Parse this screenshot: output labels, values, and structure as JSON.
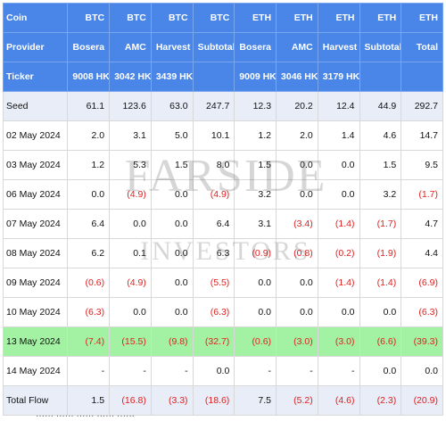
{
  "header_rows": [
    [
      "Coin",
      "BTC",
      "BTC",
      "BTC",
      "BTC",
      "ETH",
      "ETH",
      "ETH",
      "ETH",
      "ETH"
    ],
    [
      "Provider",
      "Bosera",
      "AMC",
      "Harvest",
      "Subtotal",
      "Bosera",
      "AMC",
      "Harvest",
      "Subtotal",
      "Total"
    ],
    [
      "Ticker",
      "9008 HK",
      "3042 HK",
      "3439 HK",
      "",
      "9009 HK",
      "3046 HK",
      "3179 HK",
      "",
      ""
    ]
  ],
  "rows": [
    {
      "label": "Seed",
      "style": "seed",
      "cells": [
        "61.1",
        "123.6",
        "63.0",
        "247.7",
        "12.3",
        "20.2",
        "12.4",
        "44.9",
        "292.7"
      ]
    },
    {
      "label": "02 May 2024",
      "style": "",
      "cells": [
        "2.0",
        "3.1",
        "5.0",
        "10.1",
        "1.2",
        "2.0",
        "1.4",
        "4.6",
        "14.7"
      ]
    },
    {
      "label": "03 May 2024",
      "style": "",
      "cells": [
        "1.2",
        "5.3",
        "1.5",
        "8.0",
        "1.5",
        "0.0",
        "0.0",
        "1.5",
        "9.5"
      ]
    },
    {
      "label": "06 May 2024",
      "style": "",
      "cells": [
        "0.0",
        "(4.9)",
        "0.0",
        "(4.9)",
        "3.2",
        "0.0",
        "0.0",
        "3.2",
        "(1.7)"
      ]
    },
    {
      "label": "07 May 2024",
      "style": "",
      "cells": [
        "6.4",
        "0.0",
        "0.0",
        "6.4",
        "3.1",
        "(3.4)",
        "(1.4)",
        "(1.7)",
        "4.7"
      ]
    },
    {
      "label": "08 May 2024",
      "style": "",
      "cells": [
        "6.2",
        "0.1",
        "0.0",
        "6.3",
        "(0.9)",
        "(0.8)",
        "(0.2)",
        "(1.9)",
        "4.4"
      ]
    },
    {
      "label": "09 May 2024",
      "style": "",
      "cells": [
        "(0.6)",
        "(4.9)",
        "0.0",
        "(5.5)",
        "0.0",
        "0.0",
        "(1.4)",
        "(1.4)",
        "(6.9)"
      ]
    },
    {
      "label": "10 May 2024",
      "style": "",
      "cells": [
        "(6.3)",
        "0.0",
        "0.0",
        "(6.3)",
        "0.0",
        "0.0",
        "0.0",
        "0.0",
        "(6.3)"
      ]
    },
    {
      "label": "13 May 2024",
      "style": "hl",
      "cells": [
        "(7.4)",
        "(15.5)",
        "(9.8)",
        "(32.7)",
        "(0.6)",
        "(3.0)",
        "(3.0)",
        "(6.6)",
        "(39.3)"
      ]
    },
    {
      "label": "14 May 2024",
      "style": "",
      "cells": [
        "-",
        "-",
        "-",
        "0.0",
        "-",
        "-",
        "-",
        "0.0",
        "0.0"
      ]
    },
    {
      "label": "Total Flow",
      "style": "total",
      "cells": [
        "1.5",
        "(16.8)",
        "(3.3)",
        "(18.6)",
        "7.5",
        "(5.2)",
        "(4.6)",
        "(2.3)",
        "(20.9)"
      ]
    }
  ],
  "watermark": {
    "line1": "FARSIDE",
    "line2": "INVESTORS"
  },
  "footer_text": "······ ······ ······ ······ ······"
}
